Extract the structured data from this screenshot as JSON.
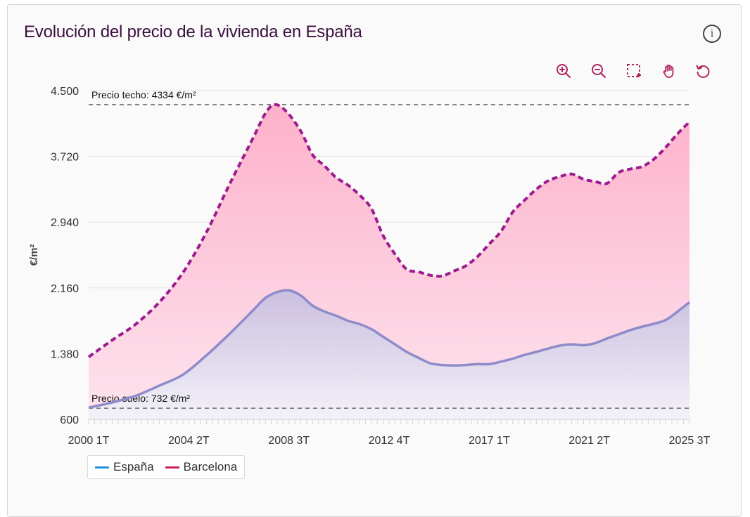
{
  "header": {
    "title": "Evolución del precio de la vivienda en España",
    "info_icon": "info-icon"
  },
  "toolbar": {
    "tools": [
      {
        "name": "zoom-in-icon"
      },
      {
        "name": "zoom-out-icon"
      },
      {
        "name": "selection-zoom-icon"
      },
      {
        "name": "pan-hand-icon"
      },
      {
        "name": "reset-icon"
      }
    ],
    "accent": "#b0245f"
  },
  "legend": {
    "items": [
      {
        "label": "España",
        "color": "#1f8ee0"
      },
      {
        "label": "Barcelona",
        "color": "#c8205e"
      }
    ]
  },
  "chart_data": {
    "type": "area",
    "ylabel": "€/m²",
    "ylim": [
      600,
      4500
    ],
    "yticks": [
      600,
      1380,
      2160,
      2940,
      3720,
      4500
    ],
    "ytick_labels": [
      "600",
      "1.380",
      "2.160",
      "2.940",
      "3.720",
      "4.500"
    ],
    "xrange": [
      2000.0,
      2025.5
    ],
    "xtick_labels": [
      {
        "label": "2000 1T",
        "x": 2000.0
      },
      {
        "label": "2004 2T",
        "x": 2004.25
      },
      {
        "label": "2008 3T",
        "x": 2008.5
      },
      {
        "label": "2012 4T",
        "x": 2012.75
      },
      {
        "label": "2017 1T",
        "x": 2017.0
      },
      {
        "label": "2021 2T",
        "x": 2021.25
      },
      {
        "label": "2025 3T",
        "x": 2025.5
      }
    ],
    "reference_lines": [
      {
        "label": "Precio techo: 4334 €/m²",
        "value": 4334
      },
      {
        "label": "Precio suelo: 732 €/m²",
        "value": 732
      }
    ],
    "series": [
      {
        "name": "Barcelona",
        "color": "#9c1b8f",
        "style": "dashed",
        "points": [
          [
            2000.0,
            1340
          ],
          [
            2001.0,
            1540
          ],
          [
            2002.0,
            1730
          ],
          [
            2003.0,
            1990
          ],
          [
            2004.0,
            2340
          ],
          [
            2005.0,
            2820
          ],
          [
            2006.0,
            3400
          ],
          [
            2007.0,
            3950
          ],
          [
            2007.5,
            4230
          ],
          [
            2007.9,
            4334
          ],
          [
            2008.4,
            4250
          ],
          [
            2009.0,
            4020
          ],
          [
            2009.5,
            3740
          ],
          [
            2010.0,
            3610
          ],
          [
            2010.5,
            3470
          ],
          [
            2011.0,
            3380
          ],
          [
            2011.5,
            3260
          ],
          [
            2012.0,
            3100
          ],
          [
            2012.5,
            2780
          ],
          [
            2013.0,
            2560
          ],
          [
            2013.5,
            2380
          ],
          [
            2014.0,
            2350
          ],
          [
            2014.5,
            2310
          ],
          [
            2015.0,
            2300
          ],
          [
            2015.5,
            2360
          ],
          [
            2016.0,
            2420
          ],
          [
            2016.5,
            2530
          ],
          [
            2017.0,
            2680
          ],
          [
            2017.5,
            2830
          ],
          [
            2018.0,
            3060
          ],
          [
            2018.5,
            3200
          ],
          [
            2019.0,
            3330
          ],
          [
            2019.5,
            3430
          ],
          [
            2020.0,
            3480
          ],
          [
            2020.5,
            3510
          ],
          [
            2021.0,
            3450
          ],
          [
            2021.5,
            3420
          ],
          [
            2022.0,
            3400
          ],
          [
            2022.5,
            3530
          ],
          [
            2023.0,
            3570
          ],
          [
            2023.5,
            3600
          ],
          [
            2024.0,
            3690
          ],
          [
            2024.5,
            3830
          ],
          [
            2025.0,
            3990
          ],
          [
            2025.5,
            4130
          ]
        ]
      },
      {
        "name": "España",
        "color": "#8d8bc9",
        "style": "solid",
        "points": [
          [
            2000.0,
            740
          ],
          [
            2001.0,
            800
          ],
          [
            2002.0,
            880
          ],
          [
            2003.0,
            1000
          ],
          [
            2004.0,
            1130
          ],
          [
            2005.0,
            1360
          ],
          [
            2006.0,
            1620
          ],
          [
            2007.0,
            1900
          ],
          [
            2007.5,
            2040
          ],
          [
            2008.0,
            2110
          ],
          [
            2008.5,
            2130
          ],
          [
            2009.0,
            2070
          ],
          [
            2009.5,
            1950
          ],
          [
            2010.0,
            1880
          ],
          [
            2010.5,
            1830
          ],
          [
            2011.0,
            1770
          ],
          [
            2011.5,
            1730
          ],
          [
            2012.0,
            1670
          ],
          [
            2012.5,
            1580
          ],
          [
            2013.0,
            1490
          ],
          [
            2013.5,
            1400
          ],
          [
            2014.0,
            1330
          ],
          [
            2014.5,
            1265
          ],
          [
            2015.0,
            1245
          ],
          [
            2015.5,
            1240
          ],
          [
            2016.0,
            1245
          ],
          [
            2016.5,
            1255
          ],
          [
            2017.0,
            1255
          ],
          [
            2017.5,
            1285
          ],
          [
            2018.0,
            1320
          ],
          [
            2018.5,
            1365
          ],
          [
            2019.0,
            1400
          ],
          [
            2019.5,
            1440
          ],
          [
            2020.0,
            1475
          ],
          [
            2020.5,
            1490
          ],
          [
            2021.0,
            1480
          ],
          [
            2021.5,
            1505
          ],
          [
            2022.0,
            1560
          ],
          [
            2022.5,
            1610
          ],
          [
            2023.0,
            1660
          ],
          [
            2023.5,
            1700
          ],
          [
            2024.0,
            1735
          ],
          [
            2024.5,
            1780
          ],
          [
            2025.0,
            1880
          ],
          [
            2025.5,
            1990
          ]
        ]
      }
    ]
  }
}
